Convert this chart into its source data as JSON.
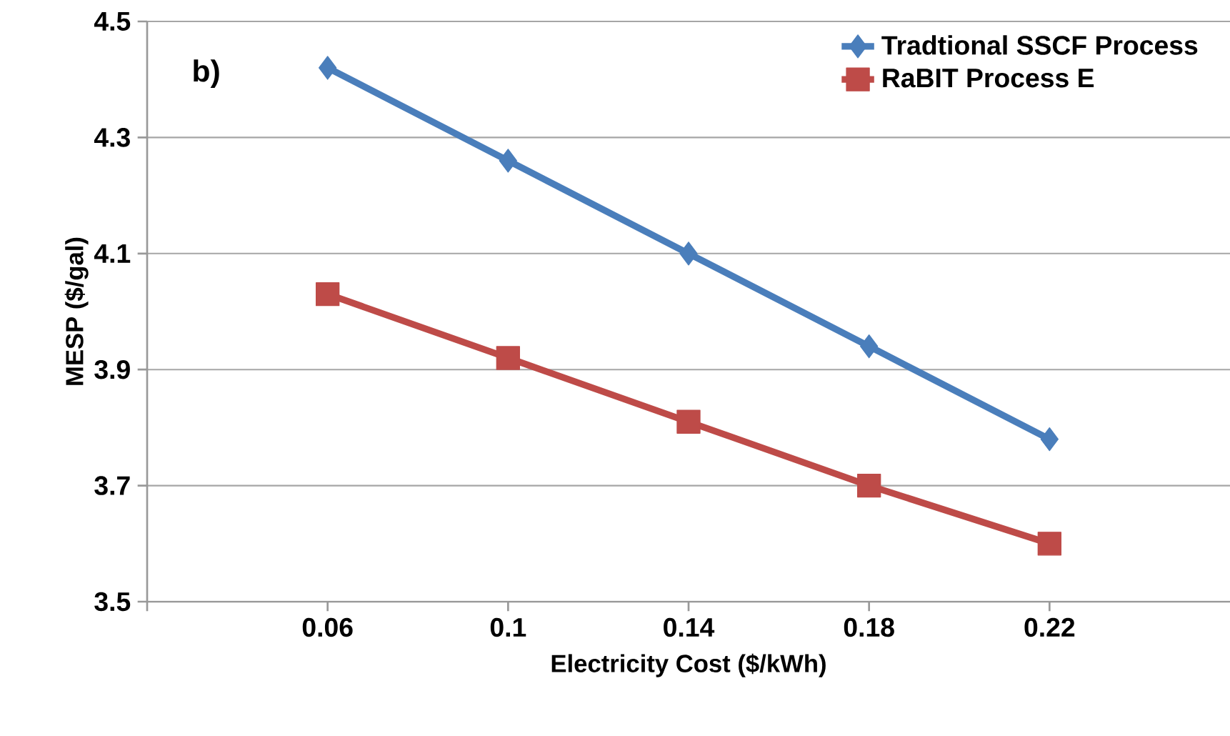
{
  "chart_data": {
    "type": "line",
    "xlabel": "Electricity Cost ($/kWh)",
    "ylabel": "MESP ($/gal)",
    "annotations": [
      "b)"
    ],
    "x": [
      0.06,
      0.1,
      0.14,
      0.18,
      0.22
    ],
    "xlim": [
      0.02,
      0.26
    ],
    "xticks": [
      {
        "value": 0.02,
        "label": null
      },
      0.06,
      0.1,
      0.14,
      0.18,
      0.22
    ],
    "ylim": [
      3.5,
      4.5
    ],
    "yticks": [
      3.5,
      3.7,
      3.9,
      4.1,
      4.3,
      4.5
    ],
    "grid": "y",
    "legend": "top right",
    "line_style": "solid",
    "series": [
      {
        "name": "Tradtional SSCF Process",
        "color": "#4a7ebb",
        "marker": "diamond",
        "values": [
          4.42,
          4.26,
          4.1,
          3.94,
          3.78
        ]
      },
      {
        "name": "RaBIT Process E",
        "color": "#be4b48",
        "marker": "square",
        "values": [
          4.03,
          3.92,
          3.81,
          3.7,
          3.6
        ]
      }
    ]
  }
}
